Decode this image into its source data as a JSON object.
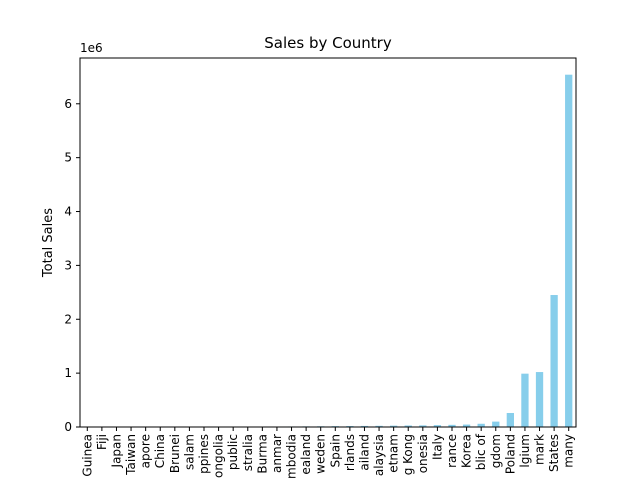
{
  "chart_data": {
    "type": "bar",
    "title": "Sales by Country",
    "xlabel": "",
    "ylabel": "Total Sales",
    "scale_label": "1e6",
    "ylim": [
      0,
      6.85
    ],
    "yticks": [
      0,
      1,
      2,
      3,
      4,
      5,
      6
    ],
    "ytick_labels": [
      "0",
      "1",
      "2",
      "3",
      "4",
      "5",
      "6"
    ],
    "grid": false,
    "legend": "none",
    "bar_color": "#87ceeb",
    "categories": [
      "Guinea",
      "Fiji",
      "Japan",
      "Taiwan",
      "apore",
      "China",
      "Brunei",
      "salam",
      "ppines",
      "ongolia",
      "public",
      "stralia",
      "Burma",
      "anmar",
      "mbodia",
      "ealand",
      "weden",
      "Spain",
      "rlands",
      "ailand",
      "alaysia",
      "etnam",
      "g Kong",
      "onesia",
      "Italy",
      "rance",
      "Korea",
      "blic of",
      "gdom",
      "Poland",
      "lgium",
      "mark",
      "States",
      "many"
    ],
    "values": [
      0.0005,
      0.001,
      0.001,
      0.002,
      0.002,
      0.003,
      0.003,
      0.004,
      0.005,
      0.005,
      0.006,
      0.007,
      0.008,
      0.009,
      0.01,
      0.012,
      0.014,
      0.016,
      0.018,
      0.02,
      0.022,
      0.025,
      0.028,
      0.03,
      0.035,
      0.04,
      0.045,
      0.06,
      0.1,
      0.26,
      0.99,
      1.02,
      2.45,
      6.54
    ]
  }
}
